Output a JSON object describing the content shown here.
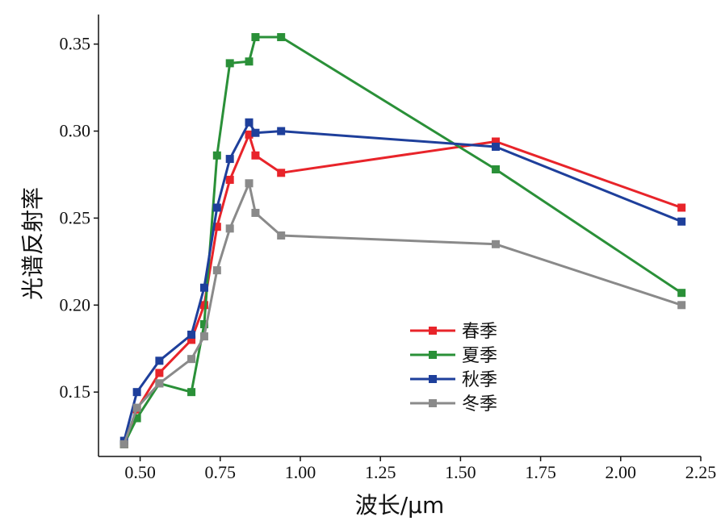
{
  "chart_data": {
    "type": "line",
    "xlabel": "波长/μm",
    "ylabel": "光谱反射率",
    "xlim": [
      0.37,
      2.25
    ],
    "ylim": [
      0.113,
      0.367
    ],
    "xticks": [
      "0.50",
      "0.75",
      "1.00",
      "1.25",
      "1.50",
      "1.75",
      "2.00",
      "2.25"
    ],
    "xtick_values": [
      0.5,
      0.75,
      1.0,
      1.25,
      1.5,
      1.75,
      2.0,
      2.25
    ],
    "yticks": [
      "0.15",
      "0.20",
      "0.25",
      "0.30",
      "0.35"
    ],
    "ytick_values": [
      0.15,
      0.2,
      0.25,
      0.3,
      0.35
    ],
    "legend_position": "center",
    "grid": false,
    "x": [
      0.45,
      0.49,
      0.56,
      0.66,
      0.7,
      0.74,
      0.78,
      0.84,
      0.86,
      0.94,
      1.61,
      2.19
    ],
    "series": [
      {
        "name": "春季",
        "color": "#e8242a",
        "values": [
          0.12,
          0.14,
          0.161,
          0.18,
          0.2,
          0.245,
          0.272,
          0.298,
          0.286,
          0.276,
          0.294,
          0.256
        ]
      },
      {
        "name": "夏季",
        "color": "#2a9038",
        "values": [
          0.12,
          0.135,
          0.155,
          0.15,
          0.189,
          0.286,
          0.339,
          0.34,
          0.354,
          0.354,
          0.278,
          0.207
        ]
      },
      {
        "name": "秋季",
        "color": "#1e3f9b",
        "values": [
          0.122,
          0.15,
          0.168,
          0.183,
          0.21,
          0.256,
          0.284,
          0.305,
          0.299,
          0.3,
          0.291,
          0.248
        ]
      },
      {
        "name": "冬季",
        "color": "#8a8a8a",
        "values": [
          0.12,
          0.141,
          0.155,
          0.169,
          0.182,
          0.22,
          0.244,
          0.27,
          0.253,
          0.24,
          0.235,
          0.2
        ]
      }
    ]
  }
}
